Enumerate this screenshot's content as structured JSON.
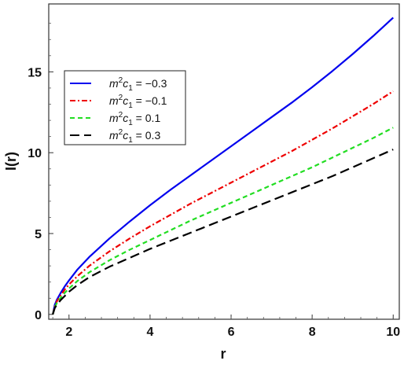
{
  "chart_data": {
    "type": "line",
    "title": "",
    "xlabel": "r",
    "ylabel": "I(r)",
    "xlim": [
      1.5,
      10.15
    ],
    "ylim": [
      -0.3,
      19.2
    ],
    "x_ticks": [
      2,
      4,
      6,
      8,
      10
    ],
    "y_ticks": [
      0,
      5,
      10,
      15
    ],
    "grid": false,
    "legend_position": "middle-left",
    "series": [
      {
        "name": "m2c1 = -0.3",
        "legend_parts": {
          "m": "m",
          "sup": "2",
          "c": "c",
          "sub": "1",
          "eq": " = ",
          "value": "−0.3"
        },
        "color": "#0000ee",
        "dash": "solid",
        "x": [
          1.6,
          1.65,
          1.7,
          1.8,
          1.9,
          2.0,
          2.2,
          2.5,
          3.0,
          3.5,
          4.0,
          4.5,
          5.0,
          5.5,
          6.0,
          6.5,
          7.0,
          7.5,
          8.0,
          8.5,
          9.0,
          9.5,
          10.0
        ],
        "y": [
          0.0,
          0.6,
          0.9,
          1.35,
          1.75,
          2.1,
          2.75,
          3.55,
          4.7,
          5.75,
          6.75,
          7.7,
          8.6,
          9.5,
          10.4,
          11.3,
          12.2,
          13.1,
          14.05,
          15.05,
          16.1,
          17.2,
          18.35
        ]
      },
      {
        "name": "m2c1 = -0.1",
        "legend_parts": {
          "m": "m",
          "sup": "2",
          "c": "c",
          "sub": "1",
          "eq": " = ",
          "value": "−0.1"
        },
        "color": "#ee0000",
        "dash": "dashdot",
        "x": [
          1.6,
          1.65,
          1.7,
          1.8,
          1.9,
          2.0,
          2.2,
          2.5,
          3.0,
          3.5,
          4.0,
          4.5,
          5.0,
          5.5,
          6.0,
          6.5,
          7.0,
          7.5,
          8.0,
          8.5,
          9.0,
          9.5,
          10.0
        ],
        "y": [
          0.0,
          0.5,
          0.8,
          1.2,
          1.55,
          1.85,
          2.35,
          3.0,
          3.9,
          4.7,
          5.45,
          6.15,
          6.85,
          7.5,
          8.15,
          8.8,
          9.45,
          10.1,
          10.8,
          11.5,
          12.25,
          13.0,
          13.8
        ]
      },
      {
        "name": "m2c1 = 0.1",
        "legend_parts": {
          "m": "m",
          "sup": "2",
          "c": "c",
          "sub": "1",
          "eq": " = ",
          "value": "0.1"
        },
        "color": "#22dd22",
        "dash": "dash",
        "x": [
          1.6,
          1.65,
          1.7,
          1.8,
          1.9,
          2.0,
          2.2,
          2.5,
          3.0,
          3.5,
          4.0,
          4.5,
          5.0,
          5.5,
          6.0,
          6.5,
          7.0,
          7.5,
          8.0,
          8.5,
          9.0,
          9.5,
          10.0
        ],
        "y": [
          0.0,
          0.45,
          0.7,
          1.05,
          1.35,
          1.6,
          2.05,
          2.6,
          3.35,
          4.0,
          4.6,
          5.2,
          5.8,
          6.35,
          6.9,
          7.45,
          8.0,
          8.55,
          9.1,
          9.7,
          10.3,
          10.9,
          11.55
        ]
      },
      {
        "name": "m2c1 = 0.3",
        "legend_parts": {
          "m": "m",
          "sup": "2",
          "c": "c",
          "sub": "1",
          "eq": " = ",
          "value": "0.3"
        },
        "color": "#000000",
        "dash": "longdash",
        "x": [
          1.6,
          1.65,
          1.7,
          1.8,
          1.9,
          2.0,
          2.2,
          2.5,
          3.0,
          3.5,
          4.0,
          4.5,
          5.0,
          5.5,
          6.0,
          6.5,
          7.0,
          7.5,
          8.0,
          8.5,
          9.0,
          9.5,
          10.0
        ],
        "y": [
          0.0,
          0.4,
          0.6,
          0.9,
          1.15,
          1.4,
          1.8,
          2.3,
          2.95,
          3.5,
          4.05,
          4.55,
          5.05,
          5.55,
          6.05,
          6.55,
          7.05,
          7.55,
          8.05,
          8.55,
          9.1,
          9.65,
          10.2
        ]
      }
    ]
  }
}
